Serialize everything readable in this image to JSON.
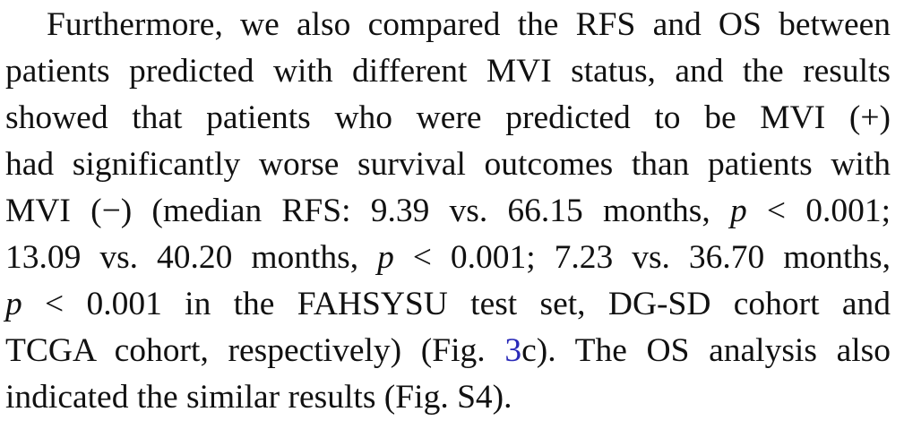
{
  "paragraph": {
    "l1": "Furthermore, we also compared the RFS and OS between",
    "l2": "patients predicted with different MVI status, and the results",
    "l3": "showed that patients who were predicted to be MVI (+)",
    "l4": "had significantly worse survival outcomes than patients with",
    "l5a": "MVI (−) (median RFS: 9.39 vs. 66.15 months,",
    "p": "p",
    "l5b": " < 0.001;",
    "l6a": "13.09 vs. 40.20 months,",
    "l6b": " < 0.001; 7.23 vs. 36.70 months,",
    "l7b": " < 0.001 in the FAHSYSU test set, DG-SD cohort and",
    "l8a": "TCGA cohort, respectively) (Fig.",
    "fig_ref": "3",
    "l8b": "c). The OS analysis also",
    "l9": "indicated the similar results (Fig. S4)."
  }
}
